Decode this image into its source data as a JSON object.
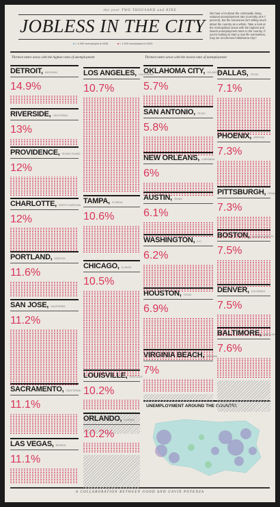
{
  "header": {
    "kicker": "the year TWO THOUSAND and NINE",
    "title": "JOBLESS IN THE CITY",
    "intro": "We hear a lot about the continually rising national unemployment rate (currently at 9.7 percent), but the someones isn't telling much about the country as a whole. Take a look at the metropolitan areas with the highest and lowest unemployment rates in the country. If you're looking to start a new life somewhere, may we recommend Oklahoma City?"
  },
  "legend": [
    {
      "label": "= 1,000 unemployed in 2008"
    },
    {
      "label": "= 1,000 unemployed in 2009"
    }
  ],
  "highest": {
    "heading": "Thirteen metro areas with the highest rates of unemployment",
    "cities": [
      {
        "name": "DETROIT,",
        "state": "MICHIGAN",
        "rate": "14.9%"
      },
      {
        "name": "RIVERSIDE,",
        "state": "CALIFORNIA",
        "rate": "13%"
      },
      {
        "name": "PROVIDENCE,",
        "state": "RHODE ISLAND",
        "rate": "12%"
      },
      {
        "name": "CHARLOTTE,",
        "state": "NORTH CAROLINA",
        "rate": "12%"
      },
      {
        "name": "PORTLAND,",
        "state": "OREGON",
        "rate": "11.6%"
      },
      {
        "name": "SAN JOSE,",
        "state": "CALIFORNIA",
        "rate": "11.2%"
      },
      {
        "name": "SACRAMENTO,",
        "state": "CALIFORNIA",
        "rate": "11.1%"
      },
      {
        "name": "LAS VEGAS,",
        "state": "NEVADA",
        "rate": "11.1%"
      },
      {
        "name": "LOS ANGELES,",
        "state": "CALIFORNIA",
        "rate": "10.7%"
      },
      {
        "name": "TAMPA,",
        "state": "FLORIDA",
        "rate": "10.6%"
      },
      {
        "name": "CHICAGO,",
        "state": "ILLINOIS",
        "rate": "10.5%"
      },
      {
        "name": "LOUISVILLE,",
        "state": "KENTUCKY",
        "rate": "10.2%"
      },
      {
        "name": "ORLANDO,",
        "state": "FLORIDA",
        "rate": "10.2%"
      }
    ]
  },
  "lowest": {
    "heading": "Thirteen metro areas with the lowest rates of unemployment",
    "cities": [
      {
        "name": "OKLAHOMA CITY,",
        "state": "OKLAHOMA",
        "rate": "5.7%"
      },
      {
        "name": "SAN ANTONIO,",
        "state": "TEXAS",
        "rate": "5.8%"
      },
      {
        "name": "NEW ORLEANS,",
        "state": "LOUISIANA",
        "rate": "6%"
      },
      {
        "name": "AUSTIN,",
        "state": "TEXAS",
        "rate": "6.1%"
      },
      {
        "name": "WASHINGTON,",
        "state": "D.C.",
        "rate": "6.2%"
      },
      {
        "name": "HOUSTON,",
        "state": "TEXAS",
        "rate": "6.9%"
      },
      {
        "name": "VIRGINIA BEACH,",
        "state": "VIRGINIA",
        "rate": "7%"
      },
      {
        "name": "DALLAS,",
        "state": "TEXAS",
        "rate": "7.1%"
      },
      {
        "name": "PHOENIX,",
        "state": "ARIZONA",
        "rate": "7.3%"
      },
      {
        "name": "PITTSBURGH,",
        "state": "PENNSYLVANIA",
        "rate": "7.3%"
      },
      {
        "name": "BOSTON,",
        "state": "MASSACHUSETTS",
        "rate": "7.5%"
      },
      {
        "name": "DENVER,",
        "state": "COLORADO",
        "rate": "7.5%"
      },
      {
        "name": "BALTIMORE,",
        "state": "MARYLAND",
        "rate": "7.6%"
      }
    ]
  },
  "map": {
    "title": "UNEMPLOYMENT AROUND THE COUNTRY"
  },
  "footer": "A COLLABORATION BETWEEN GOOD AND GAVIN POTENZA"
}
